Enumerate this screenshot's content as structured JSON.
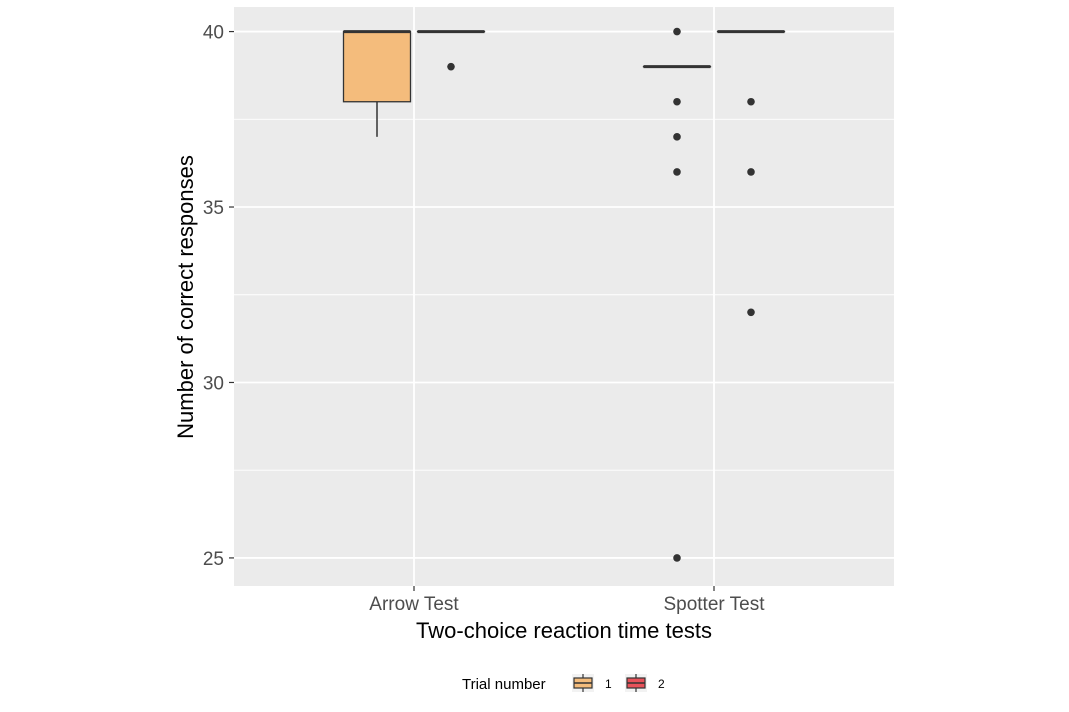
{
  "chart_data": {
    "type": "boxplot",
    "xlabel": "Two-choice reaction time tests",
    "ylabel": "Number of correct responses",
    "categories": [
      "Arrow Test",
      "Spotter Test"
    ],
    "ylim": [
      24.2,
      40.7
    ],
    "yticks": [
      25,
      30,
      35,
      40
    ],
    "grid": true,
    "legend": {
      "position": "bottom",
      "title": "Trial number",
      "entries": [
        "1",
        "2"
      ]
    },
    "series": [
      {
        "name": "1",
        "color": "#F4BC7C",
        "boxes": [
          {
            "category": "Arrow Test",
            "q1": 38,
            "median": 40,
            "q3": 40,
            "whisker_low": 37,
            "whisker_high": 40,
            "outliers": []
          },
          {
            "category": "Spotter Test",
            "q1": 39,
            "median": 39,
            "q3": 39,
            "whisker_low": 39,
            "whisker_high": 39,
            "outliers": [
              40,
              38,
              37,
              36,
              25
            ]
          }
        ]
      },
      {
        "name": "2",
        "color": "#E8525A",
        "boxes": [
          {
            "category": "Arrow Test",
            "q1": 40,
            "median": 40,
            "q3": 40,
            "whisker_low": 40,
            "whisker_high": 40,
            "outliers": [
              39
            ]
          },
          {
            "category": "Spotter Test",
            "q1": 40,
            "median": 40,
            "q3": 40,
            "whisker_low": 40,
            "whisker_high": 40,
            "outliers": [
              38,
              36,
              32
            ]
          }
        ]
      }
    ]
  }
}
